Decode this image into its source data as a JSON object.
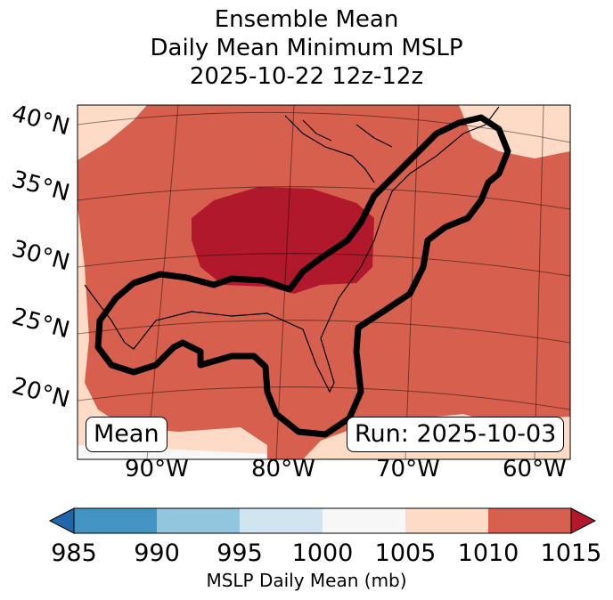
{
  "title": {
    "line1": "Ensemble Mean",
    "line2": "Daily Mean Minimum MSLP",
    "line3": "2025-10-22 12z-12z"
  },
  "map": {
    "lat_labels": [
      "40°N",
      "35°N",
      "30°N",
      "25°N",
      "20°N"
    ],
    "lon_labels": [
      "90°W",
      "80°W",
      "70°W",
      "60°W"
    ],
    "mean_box": "Mean",
    "run_box": "Run: 2025-10-03",
    "colors": {
      "lt_1005": "#f7f7f7",
      "1005_1010": "#fddbc7",
      "1010_1015": "#d6604d",
      "gt_1015": "#b2182b",
      "outline": "#000000"
    }
  },
  "colorbar": {
    "ticks": [
      "985",
      "990",
      "995",
      "1000",
      "1005",
      "1010",
      "1015"
    ],
    "label": "MSLP Daily Mean (mb)",
    "colors": [
      "#2166ac",
      "#4393c3",
      "#92c5de",
      "#d1e5f0",
      "#f7f7f7",
      "#fddbc7",
      "#d6604d",
      "#b2182b"
    ]
  }
}
